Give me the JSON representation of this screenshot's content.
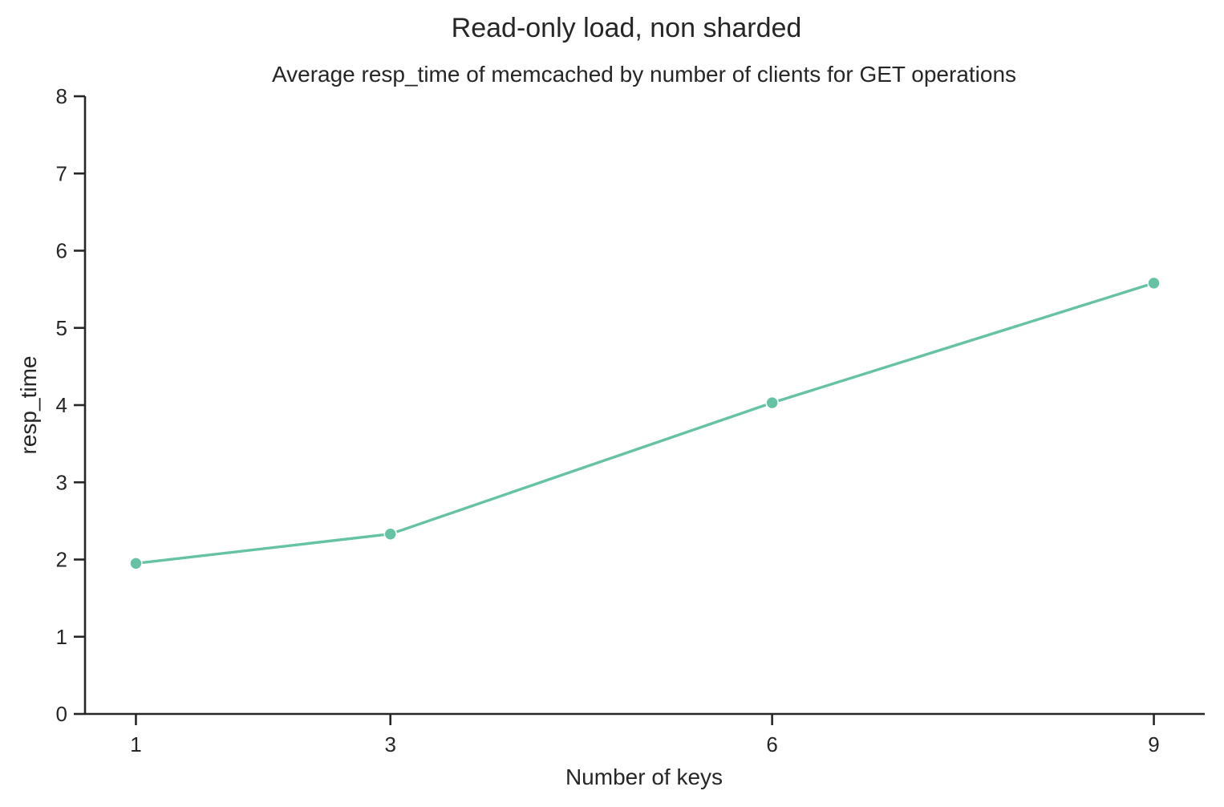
{
  "figure": {
    "suptitle": "Read-only load, non sharded"
  },
  "chart_data": {
    "type": "line",
    "title": "Average resp_time of memcached by number of clients for GET operations",
    "xlabel": "Number of keys",
    "ylabel": "resp_time",
    "x": [
      1,
      3,
      6,
      9
    ],
    "x_ticks": [
      "1",
      "3",
      "6",
      "9"
    ],
    "xlim": [
      0.6,
      9.4
    ],
    "ylim": [
      0,
      8
    ],
    "y_ticks": [
      "0",
      "1",
      "2",
      "3",
      "4",
      "5",
      "6",
      "7",
      "8"
    ],
    "series": [
      {
        "values": [
          1.95,
          2.33,
          4.03,
          5.58
        ],
        "color": "#66c2a5"
      }
    ],
    "grid": false,
    "legend": "none",
    "spines": "left-bottom"
  }
}
